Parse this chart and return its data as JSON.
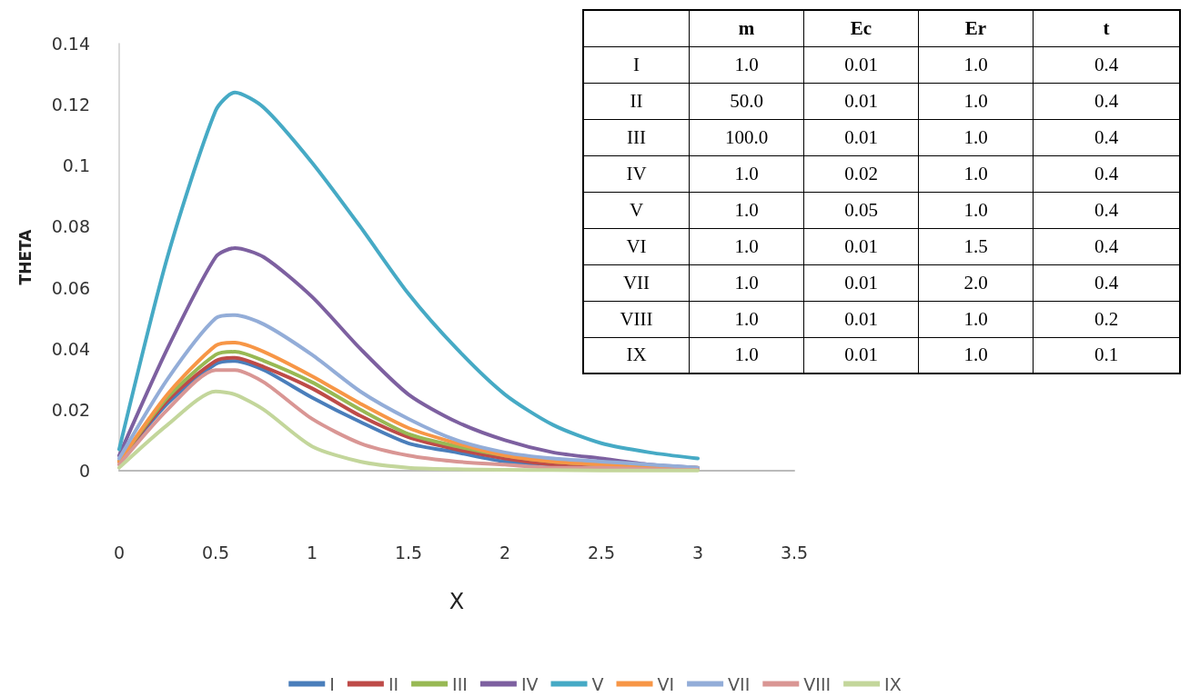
{
  "chart_data": [
    {
      "type": "line",
      "xlabel": "X",
      "ylabel": "THETA",
      "x": [
        0,
        0.25,
        0.5,
        0.6,
        0.75,
        1,
        1.25,
        1.5,
        1.75,
        2,
        2.25,
        2.5,
        2.75,
        3
      ],
      "series": [
        {
          "name": "I",
          "color": "#4a7ebb",
          "values": [
            0.003,
            0.022,
            0.035,
            0.036,
            0.033,
            0.024,
            0.016,
            0.009,
            0.006,
            0.003,
            0.002,
            0.001,
            0.001,
            0.0005
          ]
        },
        {
          "name": "II",
          "color": "#be4b48",
          "values": [
            0.003,
            0.023,
            0.036,
            0.037,
            0.034,
            0.027,
            0.018,
            0.011,
            0.007,
            0.004,
            0.002,
            0.001,
            0.001,
            0.0005
          ]
        },
        {
          "name": "III",
          "color": "#98b954",
          "values": [
            0.003,
            0.024,
            0.038,
            0.039,
            0.036,
            0.029,
            0.02,
            0.012,
            0.008,
            0.005,
            0.003,
            0.002,
            0.001,
            0.0005
          ]
        },
        {
          "name": "IV",
          "color": "#7d60a0",
          "values": [
            0.005,
            0.04,
            0.07,
            0.073,
            0.07,
            0.057,
            0.04,
            0.025,
            0.016,
            0.01,
            0.006,
            0.004,
            0.002,
            0.001
          ]
        },
        {
          "name": "V",
          "color": "#46aac5",
          "values": [
            0.007,
            0.07,
            0.118,
            0.124,
            0.119,
            0.101,
            0.08,
            0.058,
            0.04,
            0.025,
            0.015,
            0.009,
            0.006,
            0.004
          ]
        },
        {
          "name": "VI",
          "color": "#f79646",
          "values": [
            0.003,
            0.025,
            0.041,
            0.042,
            0.039,
            0.031,
            0.022,
            0.014,
            0.009,
            0.005,
            0.003,
            0.002,
            0.001,
            0.001
          ]
        },
        {
          "name": "VII",
          "color": "#93add8",
          "values": [
            0.004,
            0.03,
            0.05,
            0.051,
            0.048,
            0.038,
            0.026,
            0.017,
            0.01,
            0.006,
            0.004,
            0.003,
            0.002,
            0.001
          ]
        },
        {
          "name": "VIII",
          "color": "#d99694",
          "values": [
            0.002,
            0.02,
            0.033,
            0.033,
            0.029,
            0.017,
            0.009,
            0.005,
            0.003,
            0.002,
            0.001,
            0.001,
            0.0005,
            0.0003
          ]
        },
        {
          "name": "IX",
          "color": "#c3d69b",
          "values": [
            0.001,
            0.015,
            0.026,
            0.025,
            0.02,
            0.008,
            0.003,
            0.001,
            0.0005,
            0.0003,
            0.0002,
            0.0001,
            0.0001,
            0.0001
          ]
        }
      ],
      "xlim": [
        0,
        3.5
      ],
      "xticks": [
        0,
        0.5,
        1,
        1.5,
        2,
        2.5,
        3,
        3.5
      ],
      "ylim": [
        0,
        0.14
      ],
      "yticks": [
        0,
        0.02,
        0.04,
        0.06,
        0.08,
        0.1,
        0.12,
        0.14
      ],
      "grid": false,
      "legend": "bottom",
      "marker": "none",
      "line_style": "solid"
    },
    {
      "type": "other",
      "categories": [
        "m",
        "Ec",
        "Er",
        "t"
      ],
      "y_categories": [
        "I",
        "II",
        "III",
        "IV",
        "V",
        "VI",
        "VII",
        "VIII",
        "IX"
      ],
      "cell_labels": [
        [
          "1.0",
          "0.01",
          "1.0",
          "0.4"
        ],
        [
          "50.0",
          "0.01",
          "1.0",
          "0.4"
        ],
        [
          "100.0",
          "0.01",
          "1.0",
          "0.4"
        ],
        [
          "1.0",
          "0.02",
          "1.0",
          "0.4"
        ],
        [
          "1.0",
          "0.05",
          "1.0",
          "0.4"
        ],
        [
          "1.0",
          "0.01",
          "1.5",
          "0.4"
        ],
        [
          "1.0",
          "0.01",
          "2.0",
          "0.4"
        ],
        [
          "1.0",
          "0.01",
          "1.0",
          "0.2"
        ],
        [
          "1.0",
          "0.01",
          "1.0",
          "0.1"
        ]
      ]
    }
  ]
}
